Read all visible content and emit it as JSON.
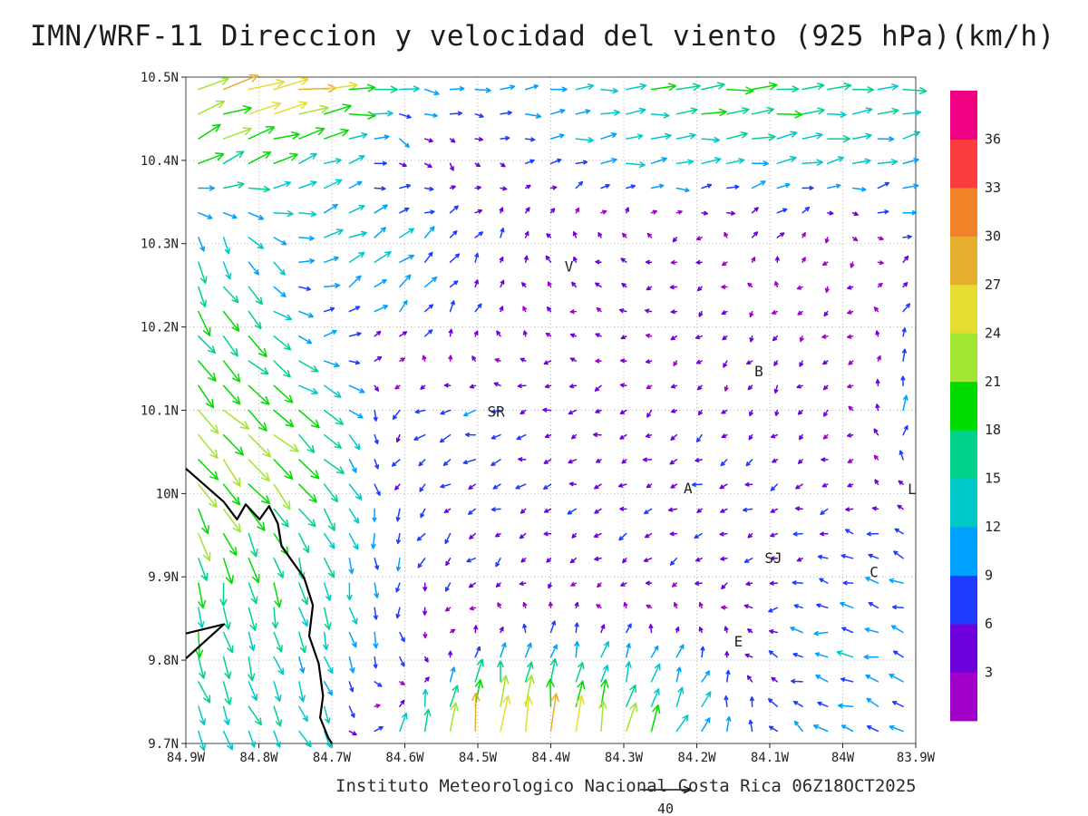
{
  "chart_data": {
    "type": "vector_field",
    "title": "IMN/WRF-11 Direccion y velocidad del viento (925 hPa)(km/h)",
    "caption": "Instituto Meteorologico Nacional Costa Rica 06Z18OCT2025",
    "units": "km/h",
    "level": "925 hPa",
    "reference_vector_label": "40",
    "lon_range": [
      -84.9,
      -83.9
    ],
    "lat_range": [
      9.7,
      10.5
    ],
    "x_ticks": [
      "84.9W",
      "84.8W",
      "84.7W",
      "84.6W",
      "84.5W",
      "84.4W",
      "84.3W",
      "84.2W",
      "84.1W",
      "84W",
      "83.9W"
    ],
    "y_ticks": [
      "10.5N",
      "10.4N",
      "10.3N",
      "10.2N",
      "10.1N",
      "10N",
      "9.9N",
      "9.8N",
      "9.7N"
    ],
    "colorbar": {
      "levels": [
        3,
        6,
        9,
        12,
        15,
        18,
        21,
        24,
        27,
        30,
        33,
        36
      ],
      "colors": [
        "#a000c8",
        "#6e00dc",
        "#1e3cff",
        "#00a0ff",
        "#00c8c8",
        "#00d28c",
        "#00dc00",
        "#a0e632",
        "#e6dc32",
        "#e6af2d",
        "#f08228",
        "#fa3c3c",
        "#f00082"
      ]
    },
    "stations": [
      {
        "label": "V",
        "lon": -84.375,
        "lat": 10.272
      },
      {
        "label": "B",
        "lon": -84.115,
        "lat": 10.146
      },
      {
        "label": "SR",
        "lon": -84.475,
        "lat": 10.098
      },
      {
        "label": "A",
        "lon": -84.212,
        "lat": 10.006
      },
      {
        "label": "L",
        "lon": -83.905,
        "lat": 10.005
      },
      {
        "label": "SJ",
        "lon": -84.095,
        "lat": 9.922
      },
      {
        "label": "C",
        "lon": -83.957,
        "lat": 9.905
      },
      {
        "label": "E",
        "lon": -84.143,
        "lat": 9.822
      }
    ],
    "coastline": {
      "main": [
        [
          -84.9,
          10.03
        ],
        [
          -84.848,
          9.99
        ],
        [
          -84.83,
          9.969
        ],
        [
          -84.818,
          9.987
        ],
        [
          -84.799,
          9.969
        ],
        [
          -84.786,
          9.985
        ],
        [
          -84.774,
          9.964
        ],
        [
          -84.769,
          9.937
        ],
        [
          -84.738,
          9.899
        ],
        [
          -84.726,
          9.866
        ],
        [
          -84.731,
          9.829
        ],
        [
          -84.718,
          9.796
        ],
        [
          -84.712,
          9.757
        ],
        [
          -84.716,
          9.731
        ],
        [
          -84.705,
          9.707
        ],
        [
          -84.7,
          9.7
        ]
      ],
      "spur": [
        [
          -84.9,
          9.832
        ],
        [
          -84.848,
          9.843
        ],
        [
          -84.9,
          9.802
        ]
      ]
    },
    "wind_grid": {
      "comment": "u,v wind components in km/h on 0.1 deg grid; rows ordered north(10.5N) to south(9.7N), columns west(84.9W) to east(83.9W)",
      "lons": [
        -84.9,
        -84.8,
        -84.7,
        -84.6,
        -84.5,
        -84.4,
        -84.3,
        -84.2,
        -84.1,
        -84.0,
        -83.9
      ],
      "lats": [
        10.5,
        10.4,
        10.3,
        10.2,
        10.1,
        10.0,
        9.9,
        9.8,
        9.7
      ],
      "uv": [
        [
          [
            22,
            8
          ],
          [
            28,
            6
          ],
          [
            26,
            2
          ],
          [
            14,
            -2
          ],
          [
            10,
            2
          ],
          [
            12,
            1
          ],
          [
            16,
            2
          ],
          [
            18,
            2
          ],
          [
            18,
            2
          ],
          [
            17,
            1
          ],
          [
            15,
            2
          ]
        ],
        [
          [
            16,
            10
          ],
          [
            18,
            8
          ],
          [
            12,
            6
          ],
          [
            4,
            -4
          ],
          [
            3,
            -3
          ],
          [
            8,
            2
          ],
          [
            12,
            2
          ],
          [
            14,
            2
          ],
          [
            14,
            3
          ],
          [
            13,
            2
          ],
          [
            12,
            3
          ]
        ],
        [
          [
            2,
            -15
          ],
          [
            8,
            -10
          ],
          [
            12,
            6
          ],
          [
            10,
            8
          ],
          [
            4,
            6
          ],
          [
            -2,
            4
          ],
          [
            -3,
            2
          ],
          [
            -4,
            -2
          ],
          [
            3,
            5
          ],
          [
            -2,
            -3
          ],
          [
            8,
            2
          ]
        ],
        [
          [
            10,
            -16
          ],
          [
            12,
            -12
          ],
          [
            8,
            4
          ],
          [
            6,
            6
          ],
          [
            2,
            5
          ],
          [
            -3,
            2
          ],
          [
            -4,
            1
          ],
          [
            -3,
            -2
          ],
          [
            -2,
            -3
          ],
          [
            -3,
            -2
          ],
          [
            2,
            8
          ]
        ],
        [
          [
            14,
            -16
          ],
          [
            16,
            -14
          ],
          [
            14,
            -10
          ],
          [
            -6,
            -4
          ],
          [
            -8,
            -2
          ],
          [
            -5,
            -2
          ],
          [
            -4,
            -2
          ],
          [
            -3,
            -3
          ],
          [
            -2,
            -4
          ],
          [
            -3,
            -2
          ],
          [
            3,
            12
          ]
        ],
        [
          [
            12,
            -18
          ],
          [
            14,
            -16
          ],
          [
            10,
            -12
          ],
          [
            -4,
            -6
          ],
          [
            -6,
            -3
          ],
          [
            -5,
            -2
          ],
          [
            -5,
            -2
          ],
          [
            -6,
            -2
          ],
          [
            -5,
            -2
          ],
          [
            -4,
            -2
          ],
          [
            -3,
            4
          ]
        ],
        [
          [
            2,
            -18
          ],
          [
            4,
            -16
          ],
          [
            4,
            -14
          ],
          [
            -2,
            -8
          ],
          [
            -4,
            -4
          ],
          [
            -3,
            -3
          ],
          [
            -4,
            -3
          ],
          [
            -4,
            -2
          ],
          [
            -5,
            -2
          ],
          [
            -8,
            3
          ],
          [
            -9,
            3
          ]
        ],
        [
          [
            4,
            -16
          ],
          [
            5,
            -15
          ],
          [
            4,
            -12
          ],
          [
            2,
            -6
          ],
          [
            3,
            10
          ],
          [
            4,
            12
          ],
          [
            4,
            10
          ],
          [
            3,
            8
          ],
          [
            -6,
            3
          ],
          [
            -10,
            2
          ],
          [
            -8,
            4
          ]
        ],
        [
          [
            6,
            -14
          ],
          [
            6,
            -12
          ],
          [
            5,
            -10
          ],
          [
            4,
            18
          ],
          [
            4,
            30
          ],
          [
            2,
            28
          ],
          [
            6,
            24
          ],
          [
            8,
            12
          ],
          [
            -4,
            6
          ],
          [
            -10,
            4
          ],
          [
            -8,
            6
          ]
        ]
      ]
    }
  }
}
